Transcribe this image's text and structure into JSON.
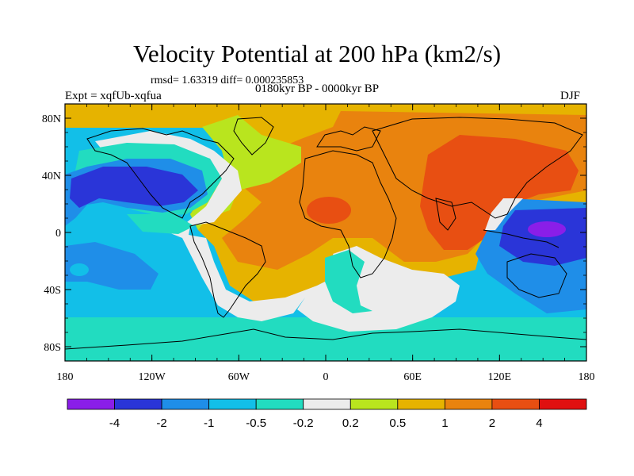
{
  "title": "Velocity Potential at 200 hPa (km2/s)",
  "stats": "rmsd= 1.63319 diff= 0.000235853",
  "period": "0180kyr BP - 0000kyr BP",
  "experiment": "Expt = xqfUb-xqfua",
  "season": "DJF",
  "lat_labels": [
    "80N",
    "40N",
    "0",
    "40S",
    "80S"
  ],
  "lon_labels": [
    "180",
    "120W",
    "60W",
    "0",
    "60E",
    "120E",
    "180"
  ],
  "lat_values": [
    80,
    40,
    0,
    -40,
    -80
  ],
  "lon_values": [
    -180,
    -120,
    -60,
    0,
    60,
    120,
    180
  ],
  "colorbar": {
    "labels": [
      "-4",
      "-2",
      "-1",
      "-0.5",
      "-0.2",
      "0.2",
      "0.5",
      "1",
      "2",
      "4"
    ],
    "colors": [
      "#8a1ee8",
      "#2a35d8",
      "#1f8ee8",
      "#12bfe8",
      "#22dcc0",
      "#ececec",
      "#b9e51e",
      "#e6b300",
      "#e9830e",
      "#e84f12",
      "#e01010"
    ]
  }
}
